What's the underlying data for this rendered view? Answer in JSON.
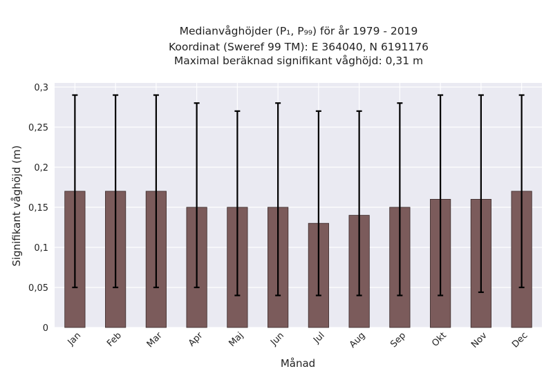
{
  "chart_data": {
    "type": "bar",
    "title_lines": [
      "Medianvåghöjder (P₁, P₉₉) för år 1979 - 2019",
      "Koordinat (Sweref 99 TM): E 364040, N 6191176",
      "Maximal beräknad signifikant våghöjd: 0,31 m"
    ],
    "xlabel": "Månad",
    "ylabel": "Signifikant våghöjd (m)",
    "categories": [
      "Jan",
      "Feb",
      "Mar",
      "Apr",
      "Maj",
      "Jun",
      "Jul",
      "Aug",
      "Sep",
      "Okt",
      "Nov",
      "Dec"
    ],
    "values": [
      0.17,
      0.17,
      0.17,
      0.15,
      0.15,
      0.15,
      0.13,
      0.14,
      0.15,
      0.16,
      0.16,
      0.17
    ],
    "error_low": [
      0.05,
      0.05,
      0.05,
      0.05,
      0.04,
      0.04,
      0.04,
      0.04,
      0.04,
      0.04,
      0.044,
      0.05
    ],
    "error_high": [
      0.29,
      0.29,
      0.29,
      0.28,
      0.27,
      0.28,
      0.27,
      0.27,
      0.28,
      0.29,
      0.29,
      0.29
    ],
    "ylim": [
      0,
      0.3
    ],
    "yticks": [
      0,
      0.05,
      0.1,
      0.15,
      0.2,
      0.25,
      0.3
    ],
    "ytick_labels": [
      "0",
      "0,05",
      "0,1",
      "0,15",
      "0,2",
      "0,25",
      "0,3"
    ],
    "grid": true,
    "colors": {
      "bar": "#7b5b5b",
      "bar_edge": "#3a2a2a",
      "plot_bg": "#eaeaf2",
      "grid": "#ffffff",
      "error": "#000000"
    }
  }
}
